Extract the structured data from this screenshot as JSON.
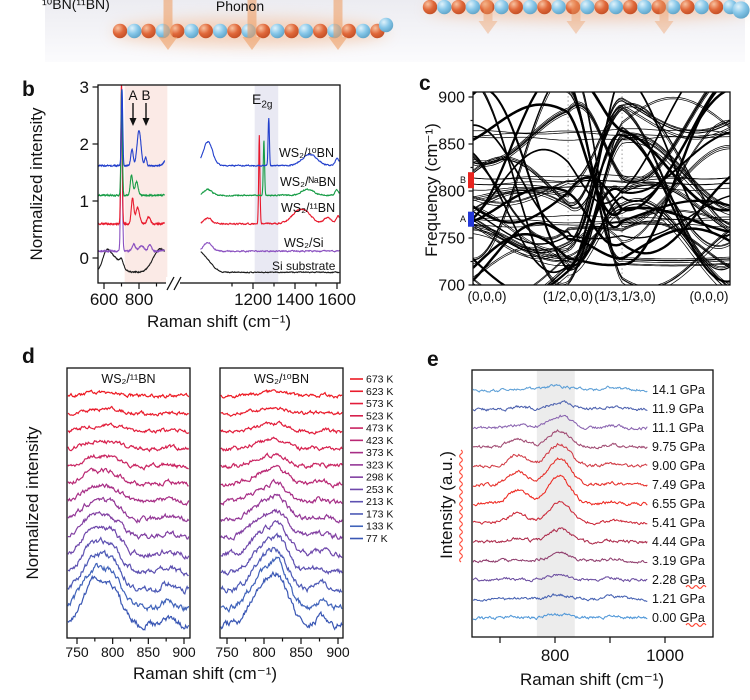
{
  "schematic": {
    "bn_label": "¹⁰BN(¹¹BN)",
    "phonon_label": "Phonon",
    "boron_color": "#e0683a",
    "nitrogen_color": "#85c6e8",
    "arrow_color": "#efa068",
    "glow_color": "#f3b183"
  },
  "panel_letters": {
    "b": "b",
    "c": "c",
    "d": "d",
    "e": "e"
  },
  "chart_data": [
    {
      "id": "b",
      "type": "line",
      "ylabel": "Normalized intensity",
      "xlabel": "Raman shift (cm⁻¹)",
      "y_axis": {
        "ticks": [
          0,
          1,
          2,
          3
        ],
        "range": [
          -0.45,
          3.35
        ]
      },
      "x_axis": {
        "ticks_left": [
          600,
          800
        ],
        "ticks_right": [
          1200,
          1400,
          1600
        ],
        "axis_break": true,
        "range": [
          565,
          1612
        ]
      },
      "shaded_bands": [
        {
          "x": [
            718,
            962
          ],
          "color": "#fbeae6"
        },
        {
          "x": [
            1208,
            1320
          ],
          "color": "#e9e9f3"
        }
      ],
      "annotations": {
        "a": "A",
        "b": "B",
        "e2g_main": "E",
        "e2g_sub": "2g"
      },
      "series": [
        {
          "label": "Si substrate",
          "color": "#1a1a1a",
          "offset": -0.25,
          "noise": 0.013,
          "peaks": [
            [
              612,
              20,
              0.2
            ],
            [
              648,
              40,
              0.28
            ],
            [
              700,
              10,
              0.12
            ],
            [
              920,
              40,
              0.4
            ],
            [
              985,
              30,
              0.12
            ]
          ]
        },
        {
          "label": "WS₂/Si",
          "color": "#8a50c0",
          "offset": 0.12,
          "noise": 0.018,
          "peaks": [
            [
              700,
              4.5,
              2.8
            ],
            [
              770,
              10,
              0.12
            ],
            [
              815,
              13,
              0.1
            ],
            [
              862,
              10,
              0.11
            ],
            [
              985,
              20,
              0.15
            ]
          ]
        },
        {
          "label": "WS₂/¹¹BN",
          "color": "#e8192c",
          "offset": 0.6,
          "noise": 0.02,
          "peaks": [
            [
              700,
              4,
              2.45
            ],
            [
              763,
              7,
              0.45
            ],
            [
              792,
              11,
              0.28
            ],
            [
              855,
              9,
              0.12
            ],
            [
              985,
              18,
              0.1
            ],
            [
              1230,
              3,
              1.55
            ],
            [
              1430,
              40,
              0.26
            ],
            [
              1555,
              18,
              0.1
            ],
            [
              1605,
              9,
              0.13
            ]
          ]
        },
        {
          "label": "WS₂/ᴺᵃBN",
          "color": "#169c45",
          "offset": 1.1,
          "noise": 0.018,
          "peaks": [
            [
              701,
              4,
              1.85
            ],
            [
              757,
              7,
              0.35
            ],
            [
              786,
              9,
              0.24
            ],
            [
              985,
              20,
              0.1
            ],
            [
              1252,
              3,
              0.97
            ],
            [
              1460,
              30,
              0.1
            ],
            [
              1600,
              9,
              0.1
            ]
          ]
        },
        {
          "label": "WS₂/¹⁰BN",
          "color": "#2340cc",
          "offset": 1.62,
          "noise": 0.018,
          "peaks": [
            [
              703,
              4,
              1.35
            ],
            [
              760,
              7,
              0.28
            ],
            [
              800,
              11,
              0.62
            ],
            [
              838,
              6,
              0.15
            ],
            [
              985,
              22,
              0.42
            ],
            [
              1275,
              3,
              0.83
            ],
            [
              1470,
              35,
              0.2
            ],
            [
              1600,
              10,
              0.12
            ]
          ]
        }
      ]
    },
    {
      "id": "c",
      "type": "line",
      "ylabel": "Frequency (cm⁻¹)",
      "y_axis": {
        "ticks": [
          700,
          750,
          800,
          850,
          900
        ],
        "range": [
          700,
          900
        ]
      },
      "x_axis": {
        "kpoint_labels": [
          "(0,0,0)",
          "(1/2,0,0)",
          "(1/3,1/3,0)",
          "(0,0,0)"
        ],
        "node_fractions": [
          0,
          0.37,
          0.58,
          1
        ]
      },
      "markers": [
        {
          "text": "B",
          "color": "#e8241f",
          "freq": [
            803,
            820
          ]
        },
        {
          "text": "A",
          "color": "#2438d8",
          "freq": [
            762,
            778
          ]
        }
      ],
      "branch_color": "#000000"
    },
    {
      "id": "d",
      "type": "line",
      "subplot_titles": [
        "WS₂/¹¹BN",
        "WS₂/¹⁰BN"
      ],
      "ylabel": "Normalized intensity",
      "xlabel": "Raman shift (cm⁻¹)",
      "x_axis": {
        "ticks": [
          750,
          800,
          850,
          900
        ],
        "range": [
          736,
          909
        ]
      },
      "peak_centers": {
        "left": [
          773,
          801
        ],
        "right": [
          797,
          821
        ]
      },
      "series": [
        {
          "label": "673 K",
          "color": "#ed1b24",
          "amp": 4
        },
        {
          "label": "623 K",
          "color": "#e91c2c",
          "amp": 5
        },
        {
          "label": "573 K",
          "color": "#e21d3a",
          "amp": 7
        },
        {
          "label": "523 K",
          "color": "#d7204d",
          "amp": 9
        },
        {
          "label": "473 K",
          "color": "#c92461",
          "amp": 12
        },
        {
          "label": "423 K",
          "color": "#b92874",
          "amp": 15
        },
        {
          "label": "373 K",
          "color": "#a72e86",
          "amp": 18
        },
        {
          "label": "323 K",
          "color": "#943897",
          "amp": 22
        },
        {
          "label": "298 K",
          "color": "#8240a2",
          "amp": 26
        },
        {
          "label": "253 K",
          "color": "#6f48ab",
          "amp": 30
        },
        {
          "label": "213 K",
          "color": "#5d51b1",
          "amp": 35
        },
        {
          "label": "173 K",
          "color": "#4d5ab6",
          "amp": 40
        },
        {
          "label": "133 K",
          "color": "#4063ba",
          "amp": 46
        },
        {
          "label": "77 K",
          "color": "#3a57b4",
          "amp": 52
        }
      ]
    },
    {
      "id": "e",
      "type": "line",
      "ylabel": "Intensity (a.u.)",
      "xlabel": "Raman shift (cm⁻¹)",
      "x_axis": {
        "ticks": [
          800,
          1000
        ],
        "minor_ticks": [
          700,
          900
        ],
        "range": [
          651,
          969
        ]
      },
      "shaded_band": {
        "x": [
          767,
          836
        ],
        "color": "#ececec"
      },
      "series": [
        {
          "label": "14.1 GPa",
          "color": "#5b9ed6",
          "amp": 4
        },
        {
          "label": "11.9 GPa",
          "color": "#4a5fae",
          "amp": 7
        },
        {
          "label": "11.1 GPa",
          "color": "#8a64b0",
          "amp": 12
        },
        {
          "label": "9.75 GPa",
          "color": "#a04a72",
          "amp": 16
        },
        {
          "label": "9.00 GPa",
          "color": "#d13a44",
          "amp": 22
        },
        {
          "label": "7.49 GPa",
          "color": "#e62e28",
          "amp": 27
        },
        {
          "label": "6.55 GPa",
          "color": "#ee2820",
          "amp": 28
        },
        {
          "label": "5.41 GPa",
          "color": "#cc2838",
          "amp": 20
        },
        {
          "label": "4.44 GPa",
          "color": "#ad2c4c",
          "amp": 13
        },
        {
          "label": "3.19 GPa",
          "color": "#8f3d6d",
          "amp": 8
        },
        {
          "label": "2.28 GPa",
          "color": "#6b4da0",
          "amp": 5
        },
        {
          "label": "1.21 GPa",
          "color": "#4561b2",
          "amp": 4
        },
        {
          "label": "0.00 GPa",
          "color": "#4f97d8",
          "amp": 4
        }
      ],
      "spellcheck_underline_rows": [
        10,
        12
      ]
    }
  ]
}
